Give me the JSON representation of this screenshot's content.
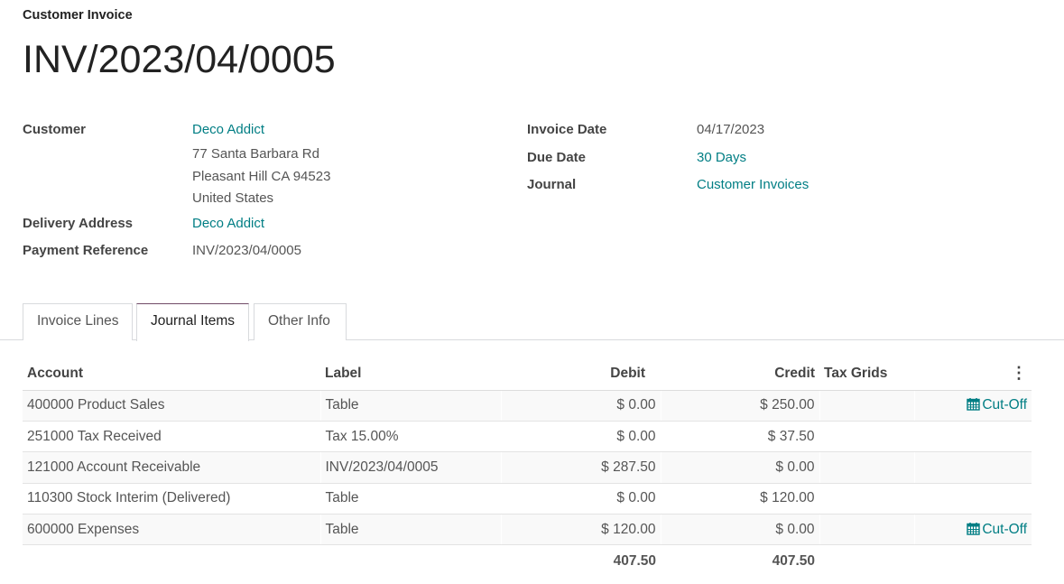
{
  "header": {
    "subtitle": "Customer Invoice",
    "title": "INV/2023/04/0005"
  },
  "fields_left": {
    "customer_label": "Customer",
    "customer": "Deco Addict",
    "address": [
      "77 Santa Barbara Rd",
      "Pleasant Hill CA 94523",
      "United States"
    ],
    "delivery_label": "Delivery Address",
    "delivery": "Deco Addict",
    "payref_label": "Payment Reference",
    "payref": "INV/2023/04/0005"
  },
  "fields_right": {
    "invoice_date_label": "Invoice Date",
    "invoice_date": "04/17/2023",
    "due_date_label": "Due Date",
    "due_date": "30 Days",
    "journal_label": "Journal",
    "journal": "Customer Invoices"
  },
  "tabs": [
    {
      "label": "Invoice Lines"
    },
    {
      "label": "Journal Items",
      "active": true
    },
    {
      "label": "Other Info"
    }
  ],
  "table": {
    "columns": [
      "Account",
      "Label",
      "Debit",
      "Credit",
      "Tax Grids"
    ],
    "rows": [
      {
        "account": "400000 Product Sales",
        "label": "Table",
        "debit": "$ 0.00",
        "credit": "$ 250.00",
        "action": "Cut-Off"
      },
      {
        "account": "251000 Tax Received",
        "label": "Tax 15.00%",
        "debit": "$ 0.00",
        "credit": "$ 37.50",
        "action": ""
      },
      {
        "account": "121000 Account Receivable",
        "label": "INV/2023/04/0005",
        "debit": "$ 287.50",
        "credit": "$ 0.00",
        "action": ""
      },
      {
        "account": "110300 Stock Interim (Delivered)",
        "label": "Table",
        "debit": "$ 0.00",
        "credit": "$ 120.00",
        "action": ""
      },
      {
        "account": "600000 Expenses",
        "label": "Table",
        "debit": "$ 120.00",
        "credit": "$ 0.00",
        "action": "Cut-Off"
      }
    ],
    "totals": {
      "debit": "407.50",
      "credit": "407.50"
    }
  },
  "colors": {
    "accent": "#017e84",
    "tab_active": "#714b67"
  }
}
